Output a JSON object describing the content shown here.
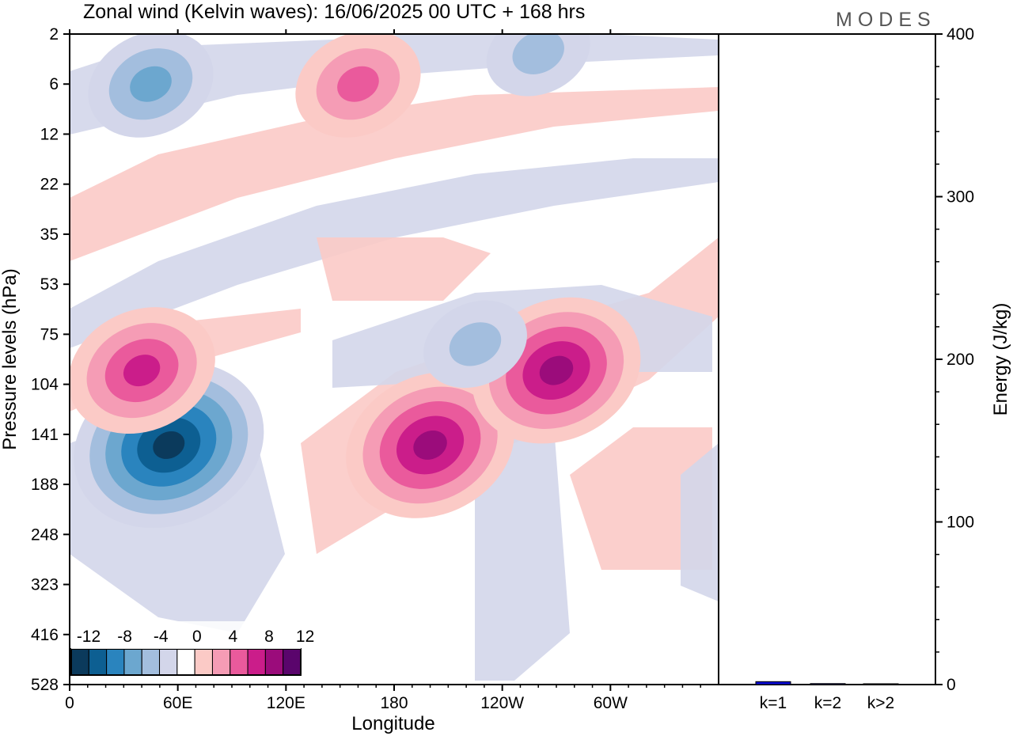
{
  "header": {
    "title": "Zonal wind (Kelvin waves):  16/06/2025  00 UTC  + 168 hrs",
    "logo": "MODES"
  },
  "colors": {
    "levels": [
      "#0b3a5c",
      "#0d5f92",
      "#2a84be",
      "#6ca7cf",
      "#a3bede",
      "#d3d6ea",
      "#ffffff",
      "#fbcac6",
      "#f59cb5",
      "#ea5a9c",
      "#cb1d8a",
      "#9b0c7b",
      "#5a056c"
    ],
    "energy_bar": "#0a0ad6"
  },
  "chart_data": [
    {
      "type": "heatmap",
      "title": "Zonal wind (Kelvin waves):  16/06/2025  00 UTC  + 168 hrs",
      "xlabel": "Longitude",
      "ylabel": "Pressure levels (hPa)",
      "x_ticks": [
        "0",
        "60E",
        "120E",
        "180",
        "120W",
        "60W"
      ],
      "x_tick_values": [
        0,
        60,
        120,
        180,
        240,
        300
      ],
      "xlim": [
        0,
        360
      ],
      "y_ticks": [
        "2",
        "6",
        "12",
        "22",
        "35",
        "53",
        "75",
        "104",
        "141",
        "188",
        "248",
        "323",
        "416",
        "528"
      ],
      "y_scale": "log",
      "y_reversed": true,
      "colorbar": {
        "labels": [
          "-12",
          "-8",
          "-4",
          "0",
          "4",
          "8",
          "12"
        ],
        "boundaries": [
          -14,
          -12,
          -10,
          -8,
          -6,
          -4,
          -2,
          2,
          4,
          6,
          8,
          10,
          12,
          14
        ]
      },
      "features": [
        {
          "lon": 55,
          "p": 150,
          "value": -14
        },
        {
          "lon": 45,
          "p": 6,
          "value": -7
        },
        {
          "lon": 200,
          "p": 150,
          "value": 11
        },
        {
          "lon": 270,
          "p": 95,
          "value": 10
        },
        {
          "lon": 40,
          "p": 95,
          "value": 8
        },
        {
          "lon": 160,
          "p": 6,
          "value": 7
        },
        {
          "lon": 225,
          "p": 80,
          "value": -6
        },
        {
          "lon": 260,
          "p": 3,
          "value": -6
        }
      ]
    },
    {
      "type": "bar",
      "ylabel": "Energy (J/kg)",
      "ylim": [
        0,
        400
      ],
      "y_ticks": [
        "0",
        "100",
        "200",
        "300",
        "400"
      ],
      "categories": [
        "k=1",
        "k=2",
        "k>2"
      ],
      "values": [
        1.8,
        0.6,
        0.5
      ]
    }
  ]
}
